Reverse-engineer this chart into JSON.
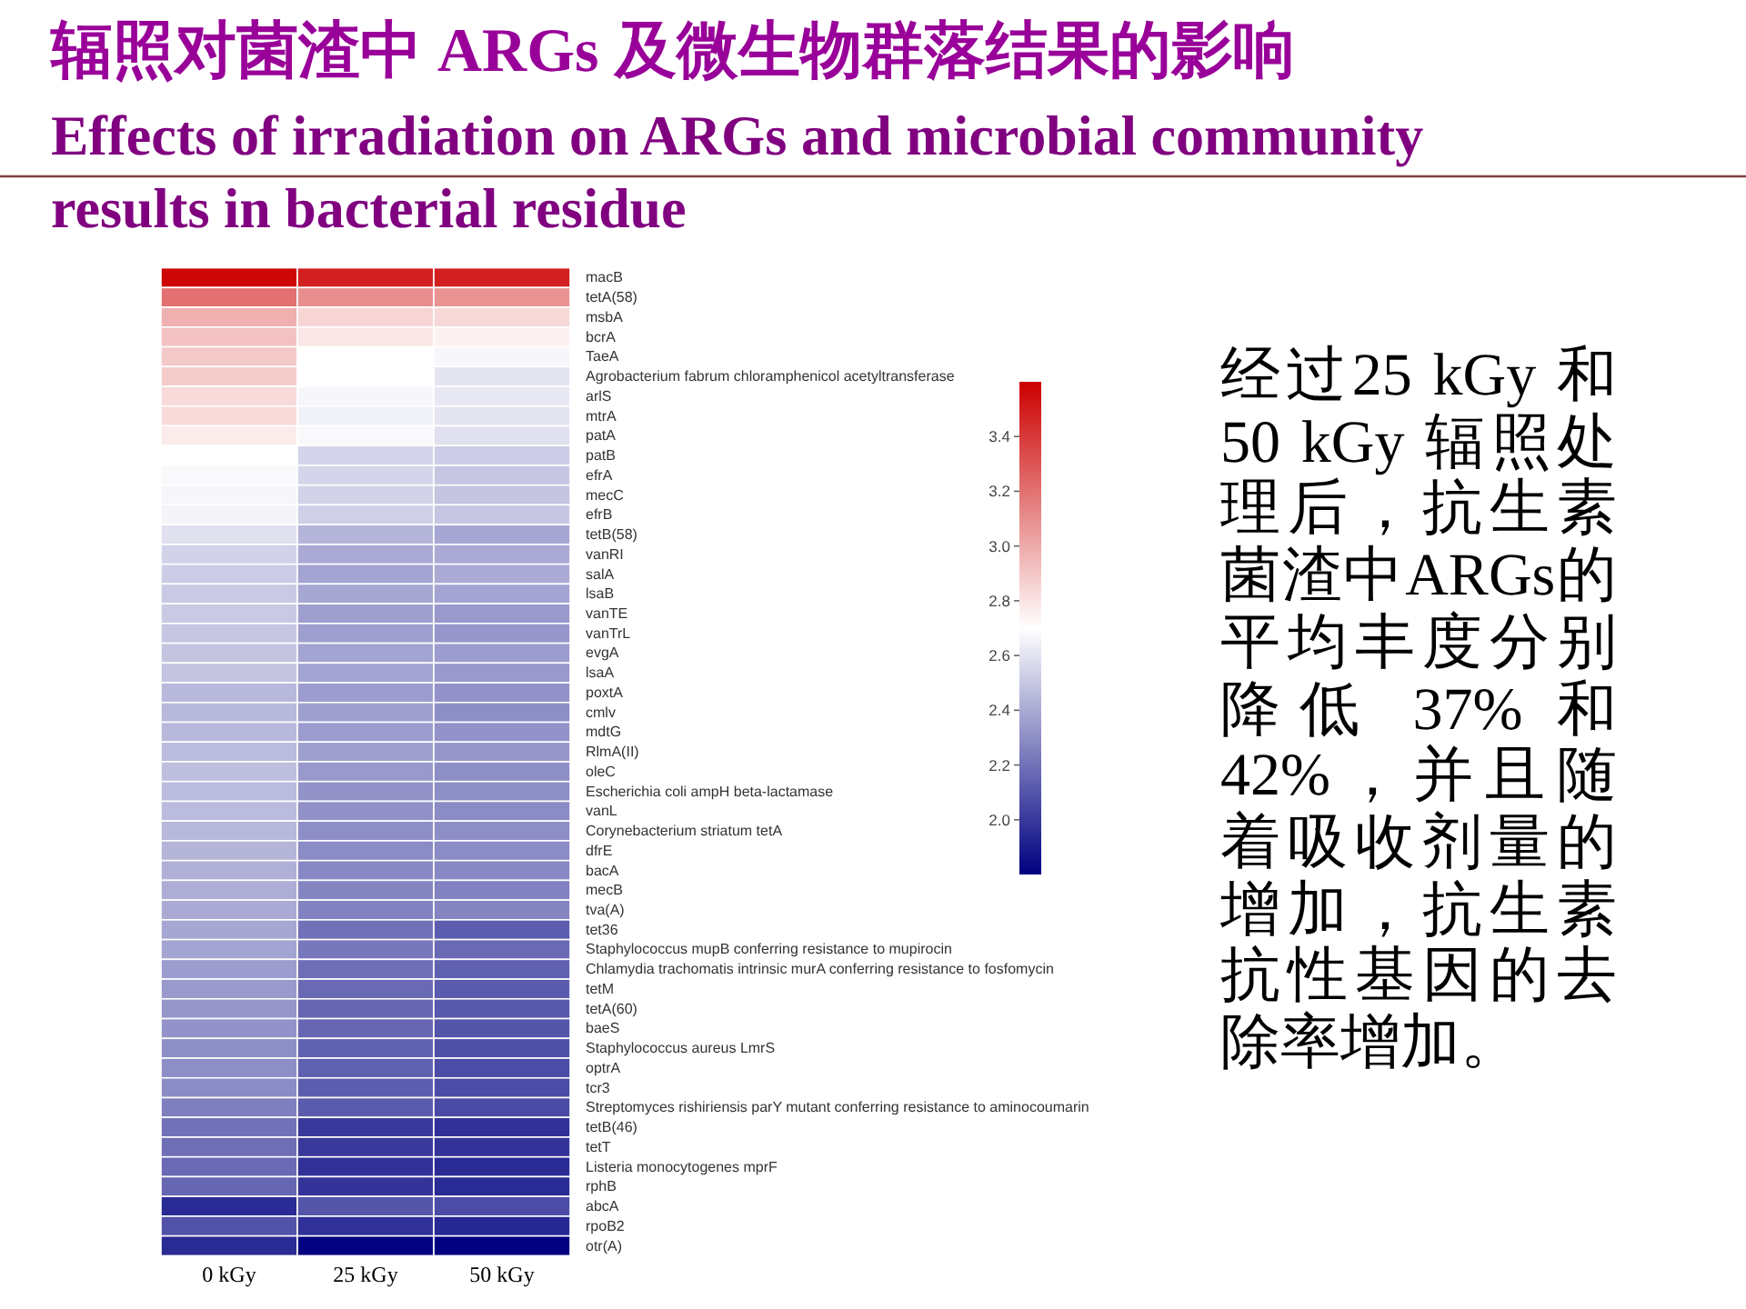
{
  "chart_data": {
    "type": "heatmap",
    "title": "辐照对菌渣中 ARGs 及微生物群落结果的影响",
    "subtitle": "Effects of irradiation on ARGs and microbial community results in bacterial residue",
    "annotations": [
      "经过25 kGy 和50 kGy 辐照处理后，抗生素菌渣中ARGs的平均丰度分别降低 37% 和42%，并且随着吸收剂量的增加，抗生素抗性基因的去除率增加。"
    ],
    "categories": [
      "0 kGy",
      "25 kGy",
      "50 kGy"
    ],
    "y_categories": [
      "macB",
      "tetA(58)",
      "msbA",
      "bcrA",
      "TaeA",
      "Agrobacterium fabrum chloramphenicol acetyltransferase",
      "arlS",
      "mtrA",
      "patA",
      "patB",
      "efrA",
      "mecC",
      "efrB",
      "tetB(58)",
      "vanRI",
      "salA",
      "lsaB",
      "vanTE",
      "vanTrL",
      "evgA",
      "lsaA",
      "poxtA",
      "cmlv",
      "mdtG",
      "RlmA(II)",
      "oleC",
      "Escherichia coli ampH beta-lactamase",
      "vanL",
      "Corynebacterium striatum tetA",
      "dfrE",
      "bacA",
      "mecB",
      "tva(A)",
      "tet36",
      "Staphylococcus mupB conferring resistance to mupirocin",
      "Chlamydia trachomatis intrinsic murA conferring resistance to fosfomycin",
      "tetM",
      "tetA(60)",
      "baeS",
      "Staphylococcus aureus LmrS",
      "optrA",
      "tcr3",
      "Streptomyces rishiriensis parY mutant conferring resistance to aminocoumarin",
      "tetB(46)",
      "tetT",
      "Listeria monocytogenes mprF",
      "rphB",
      "abcA",
      "rpoB2",
      "otr(A)"
    ],
    "cells": [
      [
        3.58,
        3.49,
        3.49
      ],
      [
        3.2,
        3.1,
        3.08
      ],
      [
        2.98,
        2.85,
        2.84
      ],
      [
        2.92,
        2.79,
        2.75
      ],
      [
        2.89,
        2.7,
        2.67
      ],
      [
        2.88,
        2.7,
        2.61
      ],
      [
        2.83,
        2.67,
        2.62
      ],
      [
        2.83,
        2.65,
        2.61
      ],
      [
        2.77,
        2.68,
        2.59
      ],
      [
        2.7,
        2.55,
        2.52
      ],
      [
        2.68,
        2.55,
        2.5
      ],
      [
        2.67,
        2.54,
        2.49
      ],
      [
        2.66,
        2.53,
        2.5
      ],
      [
        2.59,
        2.44,
        2.39
      ],
      [
        2.54,
        2.4,
        2.4
      ],
      [
        2.52,
        2.38,
        2.4
      ],
      [
        2.51,
        2.39,
        2.38
      ],
      [
        2.51,
        2.36,
        2.34
      ],
      [
        2.5,
        2.36,
        2.33
      ],
      [
        2.49,
        2.38,
        2.35
      ],
      [
        2.49,
        2.38,
        2.34
      ],
      [
        2.45,
        2.35,
        2.32
      ],
      [
        2.45,
        2.36,
        2.3
      ],
      [
        2.45,
        2.35,
        2.32
      ],
      [
        2.46,
        2.36,
        2.33
      ],
      [
        2.47,
        2.34,
        2.3
      ],
      [
        2.46,
        2.32,
        2.3
      ],
      [
        2.46,
        2.31,
        2.29
      ],
      [
        2.45,
        2.3,
        2.3
      ],
      [
        2.44,
        2.29,
        2.29
      ],
      [
        2.42,
        2.28,
        2.28
      ],
      [
        2.41,
        2.27,
        2.26
      ],
      [
        2.4,
        2.26,
        2.27
      ],
      [
        2.39,
        2.2,
        2.13
      ],
      [
        2.38,
        2.22,
        2.17
      ],
      [
        2.35,
        2.19,
        2.14
      ],
      [
        2.34,
        2.17,
        2.12
      ],
      [
        2.33,
        2.16,
        2.11
      ],
      [
        2.32,
        2.16,
        2.1
      ],
      [
        2.3,
        2.14,
        2.08
      ],
      [
        2.3,
        2.14,
        2.07
      ],
      [
        2.29,
        2.13,
        2.07
      ],
      [
        2.25,
        2.12,
        2.06
      ],
      [
        2.2,
        2.0,
        1.97
      ],
      [
        2.19,
        2.0,
        1.98
      ],
      [
        2.17,
        1.97,
        1.95
      ],
      [
        2.16,
        1.98,
        1.95
      ],
      [
        1.95,
        2.1,
        2.07
      ],
      [
        2.09,
        1.97,
        1.94
      ],
      [
        1.95,
        1.81,
        1.8
      ]
    ],
    "clim": [
      1.8,
      3.6
    ],
    "cticks": [
      {
        "value": 2.0,
        "label": "2.0"
      },
      2.2,
      2.4,
      2.6,
      2.8,
      {
        "value": 3.0,
        "label": "3.0"
      },
      3.2,
      3.4
    ]
  }
}
